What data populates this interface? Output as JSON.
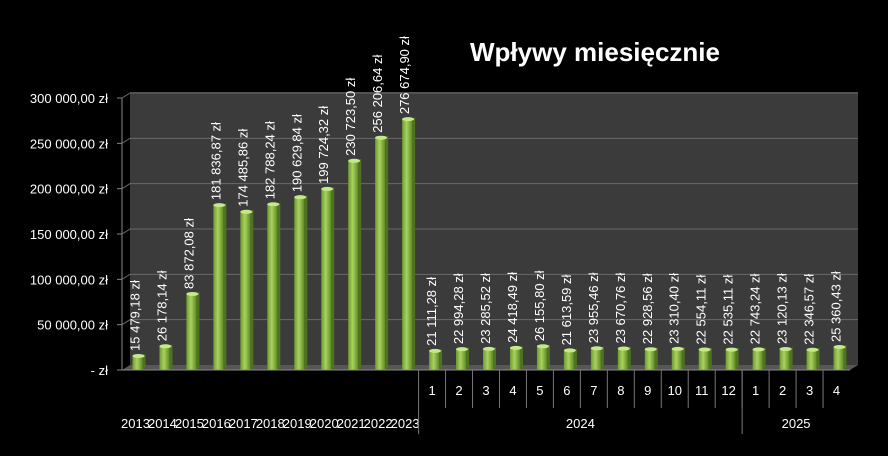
{
  "chart_data": {
    "type": "bar",
    "title": "Wpływy miesięcznie",
    "xlabel": "",
    "ylabel": "",
    "ylim": [
      0,
      300000
    ],
    "ytick_labels": [
      "-  zł",
      "50 000,00 zł",
      "100 000,00 zł",
      "150 000,00 zł",
      "200 000,00 zł",
      "250 000,00 zł",
      "300 000,00 zł"
    ],
    "ytick_values": [
      0,
      50000,
      100000,
      150000,
      200000,
      250000,
      300000
    ],
    "grid": true,
    "legend": "none",
    "bar_color": "#8fc44a",
    "background_color": "#3a3a3a",
    "categories": [
      "2013",
      "2014",
      "2015",
      "2016",
      "2017",
      "2018",
      "2019",
      "2020",
      "2021",
      "2022",
      "2023",
      "1",
      "2",
      "3",
      "4",
      "5",
      "6",
      "7",
      "8",
      "9",
      "10",
      "11",
      "12",
      "1",
      "2",
      "3",
      "4"
    ],
    "category_groups": [
      {
        "label": "",
        "start": 0,
        "end": 10
      },
      {
        "label": "2024",
        "start": 11,
        "end": 22
      },
      {
        "label": "2025",
        "start": 23,
        "end": 26
      }
    ],
    "values": [
      15479.18,
      26178.14,
      83872.08,
      181836.87,
      174485.86,
      182788.24,
      190629.84,
      199724.32,
      230723.5,
      256206.64,
      276674.9,
      21111.28,
      22994.28,
      23285.52,
      24418.49,
      26155.8,
      21613.59,
      23955.46,
      23670.76,
      22928.56,
      23310.4,
      22554.11,
      22535.11,
      22743.24,
      23120.13,
      22346.57,
      25360.43
    ],
    "data_labels": [
      "15 479,18 zł",
      "26 178,14 zł",
      "83 872,08 zł",
      "181 836,87 zł",
      "174 485,86 zł",
      "182 788,24 zł",
      "190 629,84 zł",
      "199 724,32 zł",
      "230 723,50 zł",
      "256 206,64 zł",
      "276 674,90 zł",
      "21 111,28 zł",
      "22 994,28 zł",
      "23 285,52 zł",
      "24 418,49 zł",
      "26 155,80 zł",
      "21 613,59 zł",
      "23 955,46 zł",
      "23 670,76 zł",
      "22 928,56 zł",
      "23 310,40 zł",
      "22 554,11 zł",
      "22 535,11 zł",
      "22 743,24 zł",
      "23 120,13 zł",
      "22 346,57 zł",
      "25 360,43 zł"
    ]
  }
}
